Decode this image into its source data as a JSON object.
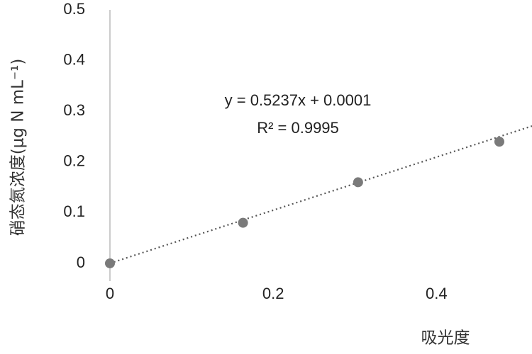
{
  "chart_data": {
    "type": "scatter",
    "x_label": "吸光度",
    "y_label": "硝态氮浓度(μg N mL⁻¹)",
    "x": [
      0,
      0.163,
      0.304,
      0.477
    ],
    "values": [
      0,
      0.08,
      0.16,
      0.24
    ],
    "color": "#7a7a7a",
    "xlim": [
      0,
      0.517
    ],
    "xticks": [
      0,
      0.2,
      0.4
    ],
    "ylim": [
      -0.035,
      0.5
    ],
    "yticks": [
      0,
      0.1,
      0.2,
      0.3,
      0.4,
      0.5
    ],
    "grid": false,
    "trendline": {
      "slope": 0.5237,
      "intercept": 0.0001,
      "style": "dotted",
      "color": "#555555",
      "equation": "y = 0.5237x + 0.0001",
      "r2_label": "R² = 0.9995"
    }
  }
}
